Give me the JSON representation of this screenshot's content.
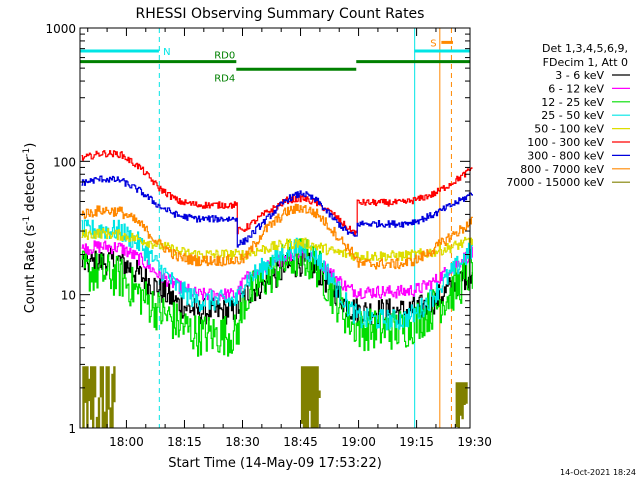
{
  "chart_data": {
    "type": "line",
    "title": "RHESSI Observing Summary Count Rates",
    "xlabel": "Start Time (14-May-09 17:53:22)",
    "ylabel_main": "Count Rate (s",
    "ylabel_sup1": "-1",
    "ylabel_mid": " detector",
    "ylabel_sup2": "-1",
    "ylabel_end": ")",
    "y_scale": "log",
    "ylim": [
      1,
      1000
    ],
    "xlim_minutes": [
      -5.4,
      95.4
    ],
    "x_ticks": [
      {
        "m": 6.6,
        "label": "18:00"
      },
      {
        "m": 21.6,
        "label": "18:15"
      },
      {
        "m": 36.6,
        "label": "18:30"
      },
      {
        "m": 51.6,
        "label": "18:45"
      },
      {
        "m": 66.6,
        "label": "19:00"
      },
      {
        "m": 81.6,
        "label": "19:15"
      },
      {
        "m": 96.6,
        "label": "19:30"
      }
    ],
    "y_ticks": [
      {
        "v": 1,
        "label": "1"
      },
      {
        "v": 10,
        "label": "10"
      },
      {
        "v": 100,
        "label": "100"
      },
      {
        "v": 1000,
        "label": "1000"
      }
    ],
    "legend": {
      "header1": "Det 1,3,4,5,6,9,",
      "header2": "FDecim 1, Att 0",
      "placement": "right"
    },
    "series": [
      {
        "name": "3 - 6 keV",
        "color": "#000000",
        "points": [
          [
            -5,
            17
          ],
          [
            0,
            17.5
          ],
          [
            5,
            18
          ],
          [
            10,
            14
          ],
          [
            15,
            11
          ],
          [
            20,
            8.5
          ],
          [
            25,
            7.5
          ],
          [
            30,
            7.5
          ],
          [
            35,
            7.5
          ],
          [
            37,
            10
          ],
          [
            42,
            12
          ],
          [
            48,
            16
          ],
          [
            52,
            17.5
          ],
          [
            56,
            15
          ],
          [
            60,
            11
          ],
          [
            64,
            8
          ],
          [
            67,
            7.5
          ],
          [
            72,
            7.5
          ],
          [
            78,
            7.5
          ],
          [
            82,
            7.8
          ],
          [
            86,
            9
          ],
          [
            90,
            11
          ],
          [
            94,
            13.5
          ],
          [
            96,
            15
          ]
        ]
      },
      {
        "name": "6 - 12 keV",
        "color": "#ff00ff",
        "points": [
          [
            -5,
            22
          ],
          [
            0,
            23
          ],
          [
            5,
            22.5
          ],
          [
            10,
            18.5
          ],
          [
            15,
            14
          ],
          [
            20,
            11.5
          ],
          [
            25,
            10
          ],
          [
            30,
            10
          ],
          [
            35,
            10
          ],
          [
            37,
            13
          ],
          [
            42,
            15.5
          ],
          [
            48,
            19.5
          ],
          [
            52,
            20.5
          ],
          [
            56,
            18
          ],
          [
            60,
            14
          ],
          [
            64,
            11
          ],
          [
            67,
            10.5
          ],
          [
            72,
            10.5
          ],
          [
            78,
            10.5
          ],
          [
            82,
            11
          ],
          [
            86,
            12.5
          ],
          [
            90,
            15.5
          ],
          [
            94,
            19
          ],
          [
            96,
            20.5
          ]
        ]
      },
      {
        "name": "12 - 25 keV",
        "color": "#00dd00",
        "points": [
          [
            -5,
            15
          ],
          [
            0,
            14.5
          ],
          [
            5,
            13.5
          ],
          [
            10,
            10
          ],
          [
            15,
            7.5
          ],
          [
            20,
            6
          ],
          [
            25,
            5
          ],
          [
            30,
            5
          ],
          [
            35,
            5
          ],
          [
            37,
            9
          ],
          [
            42,
            13
          ],
          [
            48,
            18
          ],
          [
            52,
            19.5
          ],
          [
            56,
            16
          ],
          [
            60,
            10
          ],
          [
            64,
            6.5
          ],
          [
            67,
            5.5
          ],
          [
            72,
            5.5
          ],
          [
            78,
            5.5
          ],
          [
            82,
            6.5
          ],
          [
            86,
            8
          ],
          [
            90,
            10
          ],
          [
            94,
            13
          ],
          [
            96,
            15
          ]
        ]
      },
      {
        "name": "25 - 50 keV",
        "color": "#00e5e5",
        "points": [
          [
            -5,
            30
          ],
          [
            0,
            31
          ],
          [
            5,
            30
          ],
          [
            10,
            24
          ],
          [
            15,
            16
          ],
          [
            20,
            11
          ],
          [
            25,
            9
          ],
          [
            30,
            9
          ],
          [
            35,
            9
          ],
          [
            37,
            12.5
          ],
          [
            42,
            16
          ],
          [
            48,
            21.5
          ],
          [
            52,
            22.5
          ],
          [
            56,
            19
          ],
          [
            60,
            12.5
          ],
          [
            64,
            8
          ],
          [
            67,
            6.5
          ],
          [
            72,
            6.5
          ],
          [
            78,
            6.5
          ],
          [
            82,
            7.5
          ],
          [
            86,
            10
          ],
          [
            90,
            14
          ],
          [
            94,
            19
          ],
          [
            96,
            22
          ]
        ]
      },
      {
        "name": "50 - 100 keV",
        "color": "#dddd00",
        "points": [
          [
            -5,
            28
          ],
          [
            0,
            29
          ],
          [
            5,
            28
          ],
          [
            10,
            26
          ],
          [
            15,
            23.5
          ],
          [
            20,
            21
          ],
          [
            25,
            20
          ],
          [
            30,
            20
          ],
          [
            35,
            20
          ],
          [
            37,
            20
          ],
          [
            42,
            22
          ],
          [
            48,
            24
          ],
          [
            52,
            24.5
          ],
          [
            56,
            23
          ],
          [
            60,
            21
          ],
          [
            64,
            20
          ],
          [
            67,
            19.5
          ],
          [
            72,
            19.5
          ],
          [
            78,
            19.5
          ],
          [
            82,
            20
          ],
          [
            86,
            21
          ],
          [
            90,
            22.5
          ],
          [
            94,
            24.5
          ],
          [
            96,
            26
          ]
        ]
      },
      {
        "name": "100 - 300 keV",
        "color": "#ff0000",
        "points": [
          [
            -5,
            105
          ],
          [
            0,
            115
          ],
          [
            5,
            113
          ],
          [
            10,
            90
          ],
          [
            15,
            63
          ],
          [
            20,
            50
          ],
          [
            25,
            47
          ],
          [
            30,
            47
          ],
          [
            35,
            47
          ],
          [
            35.1,
            30
          ],
          [
            37,
            31
          ],
          [
            42,
            40
          ],
          [
            48,
            51
          ],
          [
            52,
            53
          ],
          [
            56,
            48
          ],
          [
            60,
            40
          ],
          [
            64,
            31
          ],
          [
            66,
            29
          ],
          [
            66.1,
            49
          ],
          [
            72,
            49
          ],
          [
            78,
            49
          ],
          [
            82,
            52
          ],
          [
            86,
            57
          ],
          [
            90,
            67
          ],
          [
            94,
            80
          ],
          [
            96,
            90
          ]
        ]
      },
      {
        "name": "300 - 800 keV",
        "color": "#0000dd",
        "points": [
          [
            -5,
            69
          ],
          [
            0,
            74
          ],
          [
            5,
            72
          ],
          [
            10,
            60
          ],
          [
            15,
            46
          ],
          [
            20,
            39
          ],
          [
            25,
            37
          ],
          [
            30,
            37
          ],
          [
            35,
            37
          ],
          [
            35.1,
            24
          ],
          [
            37,
            25
          ],
          [
            42,
            35
          ],
          [
            48,
            52
          ],
          [
            52,
            58
          ],
          [
            56,
            50
          ],
          [
            60,
            37
          ],
          [
            64,
            29
          ],
          [
            66,
            27
          ],
          [
            66.1,
            34
          ],
          [
            72,
            34
          ],
          [
            78,
            34
          ],
          [
            82,
            36
          ],
          [
            86,
            40
          ],
          [
            90,
            46
          ],
          [
            94,
            53
          ],
          [
            96,
            58
          ]
        ]
      },
      {
        "name": "800 - 7000 keV",
        "color": "#ff8800",
        "points": [
          [
            -5,
            40
          ],
          [
            0,
            43
          ],
          [
            5,
            42
          ],
          [
            10,
            34
          ],
          [
            15,
            24
          ],
          [
            20,
            19
          ],
          [
            25,
            18
          ],
          [
            30,
            18
          ],
          [
            35,
            18
          ],
          [
            37,
            18.5
          ],
          [
            42,
            30
          ],
          [
            48,
            42
          ],
          [
            52,
            45
          ],
          [
            56,
            40
          ],
          [
            60,
            30
          ],
          [
            64,
            22
          ],
          [
            66,
            19
          ],
          [
            66.1,
            17
          ],
          [
            72,
            17
          ],
          [
            78,
            17
          ],
          [
            82,
            18.5
          ],
          [
            86,
            22
          ],
          [
            90,
            27
          ],
          [
            94,
            32
          ],
          [
            96,
            36
          ]
        ]
      },
      {
        "name": "7000 - 15000 keV",
        "color": "#808000",
        "points": [
          [
            -5,
            2.5
          ],
          [
            -1,
            2.8
          ],
          [
            3,
            2.2
          ],
          [
            6,
            1.6
          ],
          [
            9,
            1
          ]
        ]
      }
    ],
    "segments": [
      {
        "label": "N",
        "color": "#00e5e5",
        "y": 672,
        "x0": -5.4,
        "x1": 15
      },
      {
        "label": "",
        "color": "#00e5e5",
        "y": 672,
        "x0": 81,
        "x1": 95.4
      },
      {
        "label": "S",
        "color": "#ff8800",
        "y": 780,
        "x0": 88,
        "x1": 91
      },
      {
        "label": "RD0",
        "color": "#008000",
        "y": 560,
        "x0": -5.4,
        "x1": 35
      },
      {
        "label": "RD4",
        "color": "#008000",
        "y": 490,
        "x0": 35,
        "x1": 66
      },
      {
        "label": "",
        "color": "#008000",
        "y": 560,
        "x0": 66,
        "x1": 95.4
      }
    ],
    "vlines": [
      {
        "m": -5.4,
        "color": "#00e5e5",
        "dash": false
      },
      {
        "m": 15.1,
        "color": "#00e5e5",
        "dash": true
      },
      {
        "m": 81.1,
        "color": "#00e5e5",
        "dash": false
      },
      {
        "m": 95.4,
        "color": "#00e5e5",
        "dash": true
      },
      {
        "m": 87.6,
        "color": "#ff8800",
        "dash": false
      },
      {
        "m": 90.6,
        "color": "#ff8800",
        "dash": true
      }
    ],
    "attenuator_blocks": [
      {
        "x0": -4.5,
        "x1": 4,
        "hi": 2.9
      },
      {
        "x0": 52,
        "x1": 57,
        "hi": 2.9
      },
      {
        "x0": 92,
        "x1": 95,
        "hi": 2.2
      }
    ]
  },
  "footer_timestamp": "14-Oct-2021 18:24"
}
